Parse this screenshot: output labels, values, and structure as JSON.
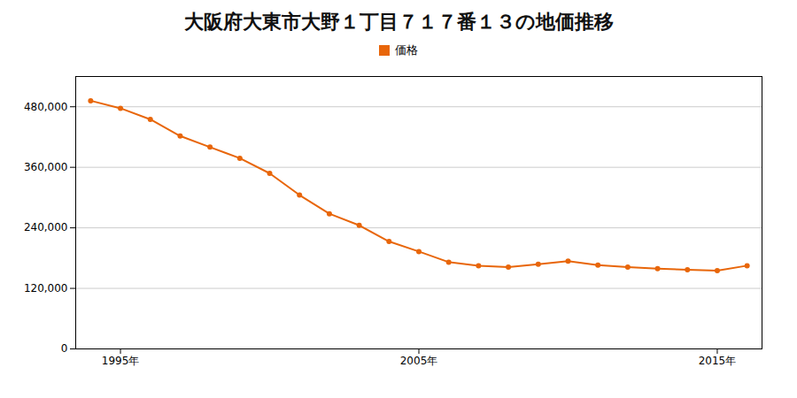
{
  "chart_data": {
    "type": "line",
    "title": "大阪府大東市大野１丁目７１７番１３の地価推移",
    "x": [
      1994,
      1995,
      1996,
      1997,
      1998,
      1999,
      2000,
      2001,
      2002,
      2003,
      2004,
      2005,
      2006,
      2007,
      2008,
      2009,
      2010,
      2011,
      2012,
      2013,
      2014,
      2015,
      2016
    ],
    "series": [
      {
        "name": "価格",
        "color": "#E8660A",
        "marker": "circle",
        "values": [
          492000,
          477000,
          455000,
          422000,
          400000,
          378000,
          348000,
          305000,
          268000,
          245000,
          213000,
          193000,
          172000,
          165000,
          162000,
          168000,
          174000,
          166000,
          162000,
          159000,
          157000,
          155000,
          165000
        ]
      }
    ],
    "xlim": [
      1993.5,
      2016.5
    ],
    "xticks": [
      {
        "value": 1995,
        "label": "1995年"
      },
      {
        "value": 2005,
        "label": "2005年"
      },
      {
        "value": 2015,
        "label": "2015年"
      }
    ],
    "ylim": [
      0,
      540000
    ],
    "yticks": [
      0,
      {
        "value": 120000,
        "label": "120,000"
      },
      {
        "value": 240000,
        "label": "240,000"
      },
      {
        "value": 360000,
        "label": "360,000"
      },
      {
        "value": 480000,
        "label": "480,000"
      }
    ],
    "grid": "y",
    "legend": "top"
  }
}
